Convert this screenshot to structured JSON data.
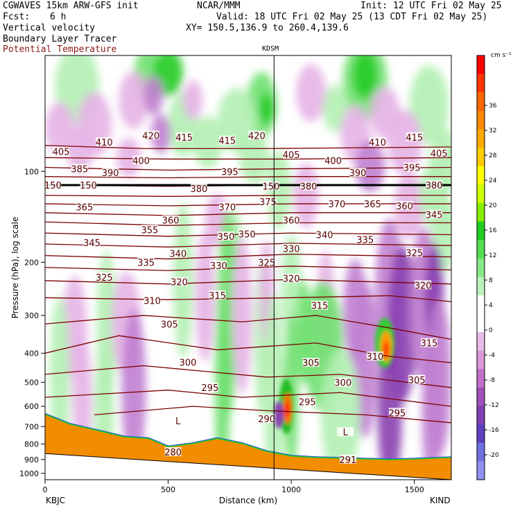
{
  "header": {
    "model": "CGWAVES 15km ARW-GFS init",
    "org": "NCAR/MMM",
    "init": "Init: 12 UTC Fri 02 May 25",
    "fcst_label": "Fcst:",
    "fcst_value": "6 h",
    "valid": "Valid: 18 UTC Fri 02 May 25 (13 CDT Fri 02 May 25)",
    "xy": "XY= 150.5,136.9 to 260.4,139.6",
    "field1": "Vertical velocity",
    "field2": "Boundary Layer Tracer",
    "field3": "Potential Temperature"
  },
  "colors": {
    "theta": "#7a0000",
    "field3_text": "#8b1a1a",
    "terrain": "#f28c00",
    "up_light": "#b3f0b3",
    "up_mid": "#6ee06e",
    "up_strong": "#22cc22",
    "down_light": "#e6b3e6",
    "down_mid": "#c080d0",
    "down_strong": "#8a40b0"
  },
  "chart_data": {
    "type": "heatmap",
    "title": "",
    "xlabel": "Distance (km)",
    "ylabel": "Pressure (hPa), log scale",
    "xlim": [
      0,
      1650
    ],
    "x_ticks": [
      0,
      500,
      1000,
      1500
    ],
    "y_scale": "log",
    "y_ticks": [
      100,
      200,
      300,
      400,
      500,
      600,
      700,
      800,
      900,
      1000
    ],
    "station_top": "KDSM",
    "station_top_x": 930,
    "station_left": "KBJC",
    "station_right": "KIND",
    "colorbar_unit": "cm s⁻¹",
    "colorbar_labels": [
      36,
      32,
      28,
      24,
      20,
      16,
      12,
      8,
      4,
      0,
      -4,
      -8,
      -12,
      -16,
      -20
    ],
    "colorbar_colors": [
      "#ff0000",
      "#ff3300",
      "#ff6600",
      "#ff8800",
      "#ffaa00",
      "#ffcc00",
      "#ffff00",
      "#ccff00",
      "#88ee00",
      "#22cc22",
      "#55dd55",
      "#88e888",
      "#bbf2bb",
      "#ffffff",
      "#ffffff",
      "#e8bce8",
      "#d898d8",
      "#c070c8",
      "#a050b8",
      "#8040b0",
      "#6040c0",
      "#7070e0",
      "#9090f0"
    ],
    "theta_labels": [
      {
        "t": "420",
        "x": 430,
        "p": 76
      },
      {
        "t": "415",
        "x": 565,
        "p": 77
      },
      {
        "t": "420",
        "x": 860,
        "p": 76
      },
      {
        "t": "415",
        "x": 1500,
        "p": 77
      },
      {
        "t": "410",
        "x": 240,
        "p": 80
      },
      {
        "t": "415",
        "x": 740,
        "p": 79
      },
      {
        "t": "410",
        "x": 1350,
        "p": 80
      },
      {
        "t": "405",
        "x": 65,
        "p": 86
      },
      {
        "t": "405",
        "x": 1000,
        "p": 88
      },
      {
        "t": "405",
        "x": 1600,
        "p": 87
      },
      {
        "t": "400",
        "x": 390,
        "p": 92
      },
      {
        "t": "400",
        "x": 1170,
        "p": 92
      },
      {
        "t": "385",
        "x": 140,
        "p": 98
      },
      {
        "t": "390",
        "x": 265,
        "p": 101
      },
      {
        "t": "395",
        "x": 750,
        "p": 100
      },
      {
        "t": "390",
        "x": 1270,
        "p": 101
      },
      {
        "t": "395",
        "x": 1490,
        "p": 97
      },
      {
        "t": "380",
        "x": 1580,
        "p": 111
      },
      {
        "t": "150",
        "x": 32,
        "p": 111
      },
      {
        "t": "150",
        "x": 176,
        "p": 111
      },
      {
        "t": "380",
        "x": 625,
        "p": 114
      },
      {
        "t": "380",
        "x": 1070,
        "p": 112
      },
      {
        "t": "150",
        "x": 918,
        "p": 112
      },
      {
        "t": "375",
        "x": 905,
        "p": 126
      },
      {
        "t": "370",
        "x": 740,
        "p": 131
      },
      {
        "t": "370",
        "x": 1185,
        "p": 128
      },
      {
        "t": "365",
        "x": 1330,
        "p": 128
      },
      {
        "t": "360",
        "x": 1460,
        "p": 130
      },
      {
        "t": "365",
        "x": 160,
        "p": 131
      },
      {
        "t": "345",
        "x": 1580,
        "p": 139
      },
      {
        "t": "360",
        "x": 510,
        "p": 145
      },
      {
        "t": "360",
        "x": 1000,
        "p": 145
      },
      {
        "t": "355",
        "x": 425,
        "p": 156
      },
      {
        "t": "350",
        "x": 735,
        "p": 164
      },
      {
        "t": "350",
        "x": 820,
        "p": 161
      },
      {
        "t": "340",
        "x": 1135,
        "p": 162
      },
      {
        "t": "335",
        "x": 1300,
        "p": 168
      },
      {
        "t": "345",
        "x": 190,
        "p": 172
      },
      {
        "t": "330",
        "x": 1000,
        "p": 180
      },
      {
        "t": "325",
        "x": 1500,
        "p": 186
      },
      {
        "t": "340",
        "x": 540,
        "p": 187
      },
      {
        "t": "335",
        "x": 410,
        "p": 200
      },
      {
        "t": "330",
        "x": 705,
        "p": 205
      },
      {
        "t": "325",
        "x": 900,
        "p": 200
      },
      {
        "t": "325",
        "x": 240,
        "p": 224
      },
      {
        "t": "320",
        "x": 545,
        "p": 232
      },
      {
        "t": "320",
        "x": 1000,
        "p": 226
      },
      {
        "t": "320",
        "x": 1535,
        "p": 238
      },
      {
        "t": "315",
        "x": 700,
        "p": 257
      },
      {
        "t": "310",
        "x": 435,
        "p": 268
      },
      {
        "t": "315",
        "x": 1115,
        "p": 278
      },
      {
        "t": "305",
        "x": 505,
        "p": 320
      },
      {
        "t": "315",
        "x": 1560,
        "p": 370
      },
      {
        "t": "310",
        "x": 1340,
        "p": 410
      },
      {
        "t": "300",
        "x": 580,
        "p": 428
      },
      {
        "t": "305",
        "x": 1080,
        "p": 430
      },
      {
        "t": "295",
        "x": 670,
        "p": 520
      },
      {
        "t": "300",
        "x": 1210,
        "p": 500
      },
      {
        "t": "305",
        "x": 1510,
        "p": 490
      },
      {
        "t": "295",
        "x": 1065,
        "p": 580
      },
      {
        "t": "290",
        "x": 900,
        "p": 660
      },
      {
        "t": "295",
        "x": 1430,
        "p": 630
      },
      {
        "t": "L",
        "x": 540,
        "p": 670
      },
      {
        "t": "L",
        "x": 1220,
        "p": 730
      },
      {
        "t": "280",
        "x": 520,
        "p": 850
      },
      {
        "t": "291",
        "x": 1230,
        "p": 900
      }
    ],
    "theta_lines": [
      {
        "pts": [
          [
            0,
            82
          ],
          [
            400,
            84
          ],
          [
            900,
            84
          ],
          [
            1650,
            83
          ]
        ]
      },
      {
        "pts": [
          [
            0,
            90
          ],
          [
            500,
            91
          ],
          [
            1000,
            91
          ],
          [
            1650,
            90
          ]
        ]
      },
      {
        "pts": [
          [
            0,
            97
          ],
          [
            500,
            99
          ],
          [
            1000,
            98
          ],
          [
            1650,
            97
          ]
        ]
      },
      {
        "pts": [
          [
            0,
            104
          ],
          [
            500,
            105
          ],
          [
            1000,
            104
          ],
          [
            1650,
            104
          ]
        ]
      },
      {
        "pts": [
          [
            0,
            111
          ],
          [
            500,
            112
          ],
          [
            1000,
            111
          ],
          [
            1650,
            111
          ]
        ]
      },
      {
        "pts": [
          [
            0,
            120
          ],
          [
            500,
            121
          ],
          [
            1000,
            120
          ],
          [
            1650,
            120
          ]
        ]
      },
      {
        "pts": [
          [
            0,
            128
          ],
          [
            500,
            130
          ],
          [
            1000,
            128
          ],
          [
            1650,
            128
          ]
        ]
      },
      {
        "pts": [
          [
            0,
            137
          ],
          [
            500,
            140
          ],
          [
            1000,
            137
          ],
          [
            1650,
            137
          ]
        ]
      },
      {
        "pts": [
          [
            0,
            147
          ],
          [
            500,
            151
          ],
          [
            1000,
            148
          ],
          [
            1650,
            148
          ]
        ]
      },
      {
        "pts": [
          [
            0,
            160
          ],
          [
            500,
            164
          ],
          [
            1000,
            160
          ],
          [
            1650,
            162
          ]
        ]
      },
      {
        "pts": [
          [
            0,
            174
          ],
          [
            500,
            178
          ],
          [
            1000,
            173
          ],
          [
            1650,
            176
          ]
        ]
      },
      {
        "pts": [
          [
            0,
            190
          ],
          [
            500,
            195
          ],
          [
            1000,
            188
          ],
          [
            1650,
            192
          ]
        ]
      },
      {
        "pts": [
          [
            0,
            208
          ],
          [
            500,
            213
          ],
          [
            1000,
            206
          ],
          [
            1650,
            212
          ]
        ]
      },
      {
        "pts": [
          [
            0,
            230
          ],
          [
            500,
            236
          ],
          [
            1000,
            228
          ],
          [
            1650,
            236
          ]
        ]
      },
      {
        "pts": [
          [
            0,
            262
          ],
          [
            500,
            266
          ],
          [
            1000,
            262
          ],
          [
            1400,
            258
          ],
          [
            1650,
            270
          ]
        ]
      },
      {
        "pts": [
          [
            0,
            320
          ],
          [
            400,
            300
          ],
          [
            800,
            315
          ],
          [
            1100,
            300
          ],
          [
            1400,
            330
          ],
          [
            1650,
            360
          ]
        ]
      },
      {
        "pts": [
          [
            0,
            400
          ],
          [
            300,
            350
          ],
          [
            700,
            390
          ],
          [
            1100,
            370
          ],
          [
            1400,
            410
          ],
          [
            1650,
            430
          ]
        ]
      },
      {
        "pts": [
          [
            0,
            470
          ],
          [
            400,
            440
          ],
          [
            900,
            480
          ],
          [
            1200,
            470
          ],
          [
            1650,
            520
          ]
        ]
      },
      {
        "pts": [
          [
            0,
            560
          ],
          [
            500,
            530
          ],
          [
            800,
            560
          ],
          [
            1200,
            540
          ],
          [
            1650,
            600
          ]
        ]
      },
      {
        "pts": [
          [
            200,
            640
          ],
          [
            600,
            600
          ],
          [
            900,
            620
          ],
          [
            1300,
            640
          ],
          [
            1650,
            680
          ]
        ]
      }
    ]
  }
}
